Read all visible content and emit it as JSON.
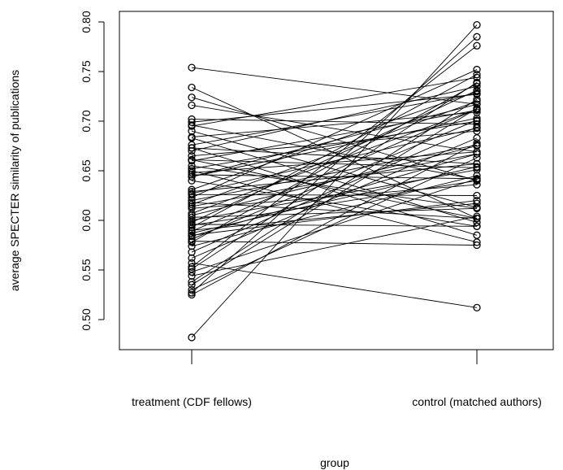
{
  "chart_data": {
    "type": "line",
    "title": "",
    "xlabel": "group",
    "ylabel": "average SPECTER similarity of publications",
    "categories": [
      "treatment (CDF fellows)",
      "control (matched authors)"
    ],
    "ylim": [
      0.48,
      0.805
    ],
    "yticks": [
      0.5,
      0.55,
      0.6,
      0.65,
      0.7,
      0.75,
      0.8
    ],
    "ytick_labels": [
      "0.50",
      "0.55",
      "0.60",
      "0.65",
      "0.70",
      "0.75",
      "0.80"
    ],
    "grid": false,
    "legend": "none",
    "marker": "open-circle",
    "pairs": [
      [
        0.754,
        0.717
      ],
      [
        0.734,
        0.602
      ],
      [
        0.724,
        0.64
      ],
      [
        0.716,
        0.669
      ],
      [
        0.702,
        0.697
      ],
      [
        0.699,
        0.727
      ],
      [
        0.696,
        0.641
      ],
      [
        0.695,
        0.744
      ],
      [
        0.69,
        0.613
      ],
      [
        0.684,
        0.709
      ],
      [
        0.683,
        0.598
      ],
      [
        0.676,
        0.728
      ],
      [
        0.673,
        0.585
      ],
      [
        0.673,
        0.657
      ],
      [
        0.67,
        0.735
      ],
      [
        0.665,
        0.69
      ],
      [
        0.661,
        0.602
      ],
      [
        0.661,
        0.653
      ],
      [
        0.66,
        0.711
      ],
      [
        0.655,
        0.612
      ],
      [
        0.652,
        0.7
      ],
      [
        0.65,
        0.578
      ],
      [
        0.648,
        0.669
      ],
      [
        0.646,
        0.642
      ],
      [
        0.644,
        0.717
      ],
      [
        0.644,
        0.703
      ],
      [
        0.64,
        0.594
      ],
      [
        0.631,
        0.73
      ],
      [
        0.629,
        0.657
      ],
      [
        0.627,
        0.693
      ],
      [
        0.626,
        0.625
      ],
      [
        0.623,
        0.752
      ],
      [
        0.62,
        0.676
      ],
      [
        0.618,
        0.602
      ],
      [
        0.616,
        0.72
      ],
      [
        0.614,
        0.667
      ],
      [
        0.612,
        0.636
      ],
      [
        0.607,
        0.712
      ],
      [
        0.605,
        0.675
      ],
      [
        0.603,
        0.612
      ],
      [
        0.6,
        0.651
      ],
      [
        0.598,
        0.731
      ],
      [
        0.596,
        0.594
      ],
      [
        0.595,
        0.64
      ],
      [
        0.593,
        0.747
      ],
      [
        0.59,
        0.617
      ],
      [
        0.589,
        0.712
      ],
      [
        0.587,
        0.654
      ],
      [
        0.585,
        0.62
      ],
      [
        0.584,
        0.667
      ],
      [
        0.581,
        0.701
      ],
      [
        0.579,
        0.575
      ],
      [
        0.578,
        0.738
      ],
      [
        0.574,
        0.645
      ],
      [
        0.568,
        0.694
      ],
      [
        0.562,
        0.683
      ],
      [
        0.557,
        0.512
      ],
      [
        0.553,
        0.776
      ],
      [
        0.551,
        0.739
      ],
      [
        0.548,
        0.642
      ],
      [
        0.544,
        0.604
      ],
      [
        0.538,
        0.722
      ],
      [
        0.535,
        0.713
      ],
      [
        0.53,
        0.663
      ],
      [
        0.527,
        0.785
      ],
      [
        0.525,
        0.678
      ],
      [
        0.482,
        0.797
      ]
    ]
  }
}
